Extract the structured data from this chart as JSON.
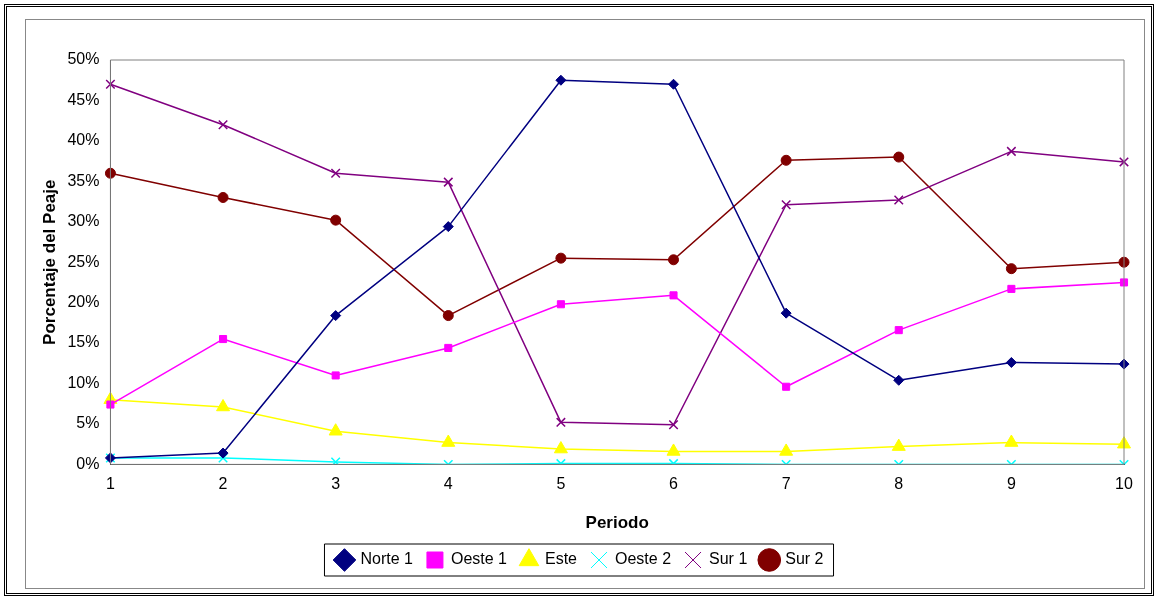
{
  "chart_data": {
    "type": "line",
    "xlabel": "Periodo",
    "ylabel": "Porcentaje del Peaje",
    "categories": [
      "1",
      "2",
      "3",
      "4",
      "5",
      "6",
      "7",
      "8",
      "9",
      "10"
    ],
    "ylim": [
      0,
      50
    ],
    "yticks": [
      {
        "value": 0,
        "label": "0%"
      },
      {
        "value": 5,
        "label": "5%"
      },
      {
        "value": 10,
        "label": "10%"
      },
      {
        "value": 15,
        "label": "15%"
      },
      {
        "value": 20,
        "label": "20%"
      },
      {
        "value": 25,
        "label": "25%"
      },
      {
        "value": 30,
        "label": "30%"
      },
      {
        "value": 35,
        "label": "35%"
      },
      {
        "value": 40,
        "label": "40%"
      },
      {
        "value": 45,
        "label": "45%"
      },
      {
        "value": 50,
        "label": "50%"
      }
    ],
    "grid": false,
    "legend": "bottom",
    "line_style": "solid",
    "series": [
      {
        "name": "Norte 1",
        "color": "#000080",
        "marker": "diamond",
        "values": [
          0.8,
          1.4,
          18.4,
          29.4,
          47.5,
          47.0,
          18.7,
          10.4,
          12.6,
          12.4
        ]
      },
      {
        "name": "Oeste 1",
        "color": "#ff00ff",
        "marker": "square",
        "values": [
          7.4,
          15.5,
          11.0,
          14.4,
          19.8,
          20.9,
          9.6,
          16.6,
          21.7,
          22.5
        ]
      },
      {
        "name": "Este",
        "color": "#ffff00",
        "marker": "triangle",
        "values": [
          8.0,
          7.1,
          4.1,
          2.7,
          1.9,
          1.6,
          1.6,
          2.2,
          2.7,
          2.5
        ]
      },
      {
        "name": "Oeste 2",
        "color": "#00ffff",
        "marker": "cross",
        "values": [
          0.8,
          0.8,
          0.3,
          0,
          0.1,
          0.1,
          0,
          0,
          0,
          0
        ]
      },
      {
        "name": "Sur 1",
        "color": "#800080",
        "marker": "cross",
        "values": [
          47.0,
          42.0,
          36.0,
          34.9,
          5.2,
          4.9,
          32.1,
          32.7,
          38.7,
          37.4
        ]
      },
      {
        "name": "Sur 2",
        "color": "#800000",
        "marker": "circle",
        "values": [
          36.0,
          33.0,
          30.2,
          18.4,
          25.5,
          25.3,
          37.6,
          38.0,
          24.2,
          25.0
        ]
      }
    ]
  }
}
